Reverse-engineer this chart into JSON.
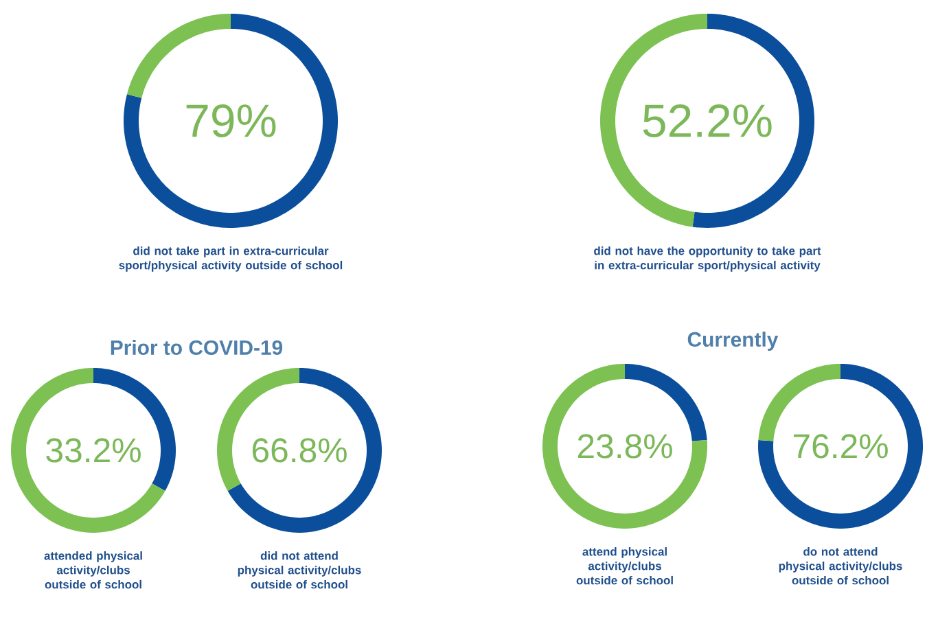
{
  "chart_data": [
    {
      "type": "donut",
      "categories": [
        null,
        null
      ],
      "values": [
        79,
        21
      ],
      "colors": [
        "#0b4f9c",
        "#7cc152"
      ],
      "value_labels": [
        "79%",
        null
      ],
      "annotations": [
        "did not take part in extra-curricular sport/physical activity outside of school"
      ]
    },
    {
      "type": "donut",
      "categories": [
        null,
        null
      ],
      "values": [
        52.2,
        47.8
      ],
      "colors": [
        "#0b4f9c",
        "#7cc152"
      ],
      "value_labels": [
        "52.2%",
        null
      ],
      "annotations": [
        "did not have the opportunity to take part in extra-curricular sport/physical activity"
      ]
    },
    {
      "type": "donut",
      "title": "Prior to COVID-19",
      "categories": [
        null,
        null
      ],
      "values": [
        33.2,
        66.8
      ],
      "colors": [
        "#0b4f9c",
        "#7cc152"
      ],
      "value_labels": [
        "33.2%",
        null
      ],
      "annotations": [
        "attended physical activity/clubs outside of school"
      ]
    },
    {
      "type": "donut",
      "categories": [
        null,
        null
      ],
      "values": [
        66.8,
        33.2
      ],
      "colors": [
        "#0b4f9c",
        "#7cc152"
      ],
      "value_labels": [
        "66.8%",
        null
      ],
      "annotations": [
        "did not attend physical activity/clubs outside of school"
      ]
    },
    {
      "type": "donut",
      "title": "Currently",
      "categories": [
        null,
        null
      ],
      "values": [
        23.8,
        76.2
      ],
      "colors": [
        "#0b4f9c",
        "#7cc152"
      ],
      "value_labels": [
        "23.8%",
        null
      ],
      "annotations": [
        "attend physical activity/clubs outside of school"
      ]
    },
    {
      "type": "donut",
      "categories": [
        null,
        null
      ],
      "values": [
        76.2,
        23.8
      ],
      "colors": [
        "#0b4f9c",
        "#7cc152"
      ],
      "value_labels": [
        "76.2%",
        null
      ],
      "annotations": [
        "do not attend physical activity/clubs outside of school"
      ]
    }
  ]
}
